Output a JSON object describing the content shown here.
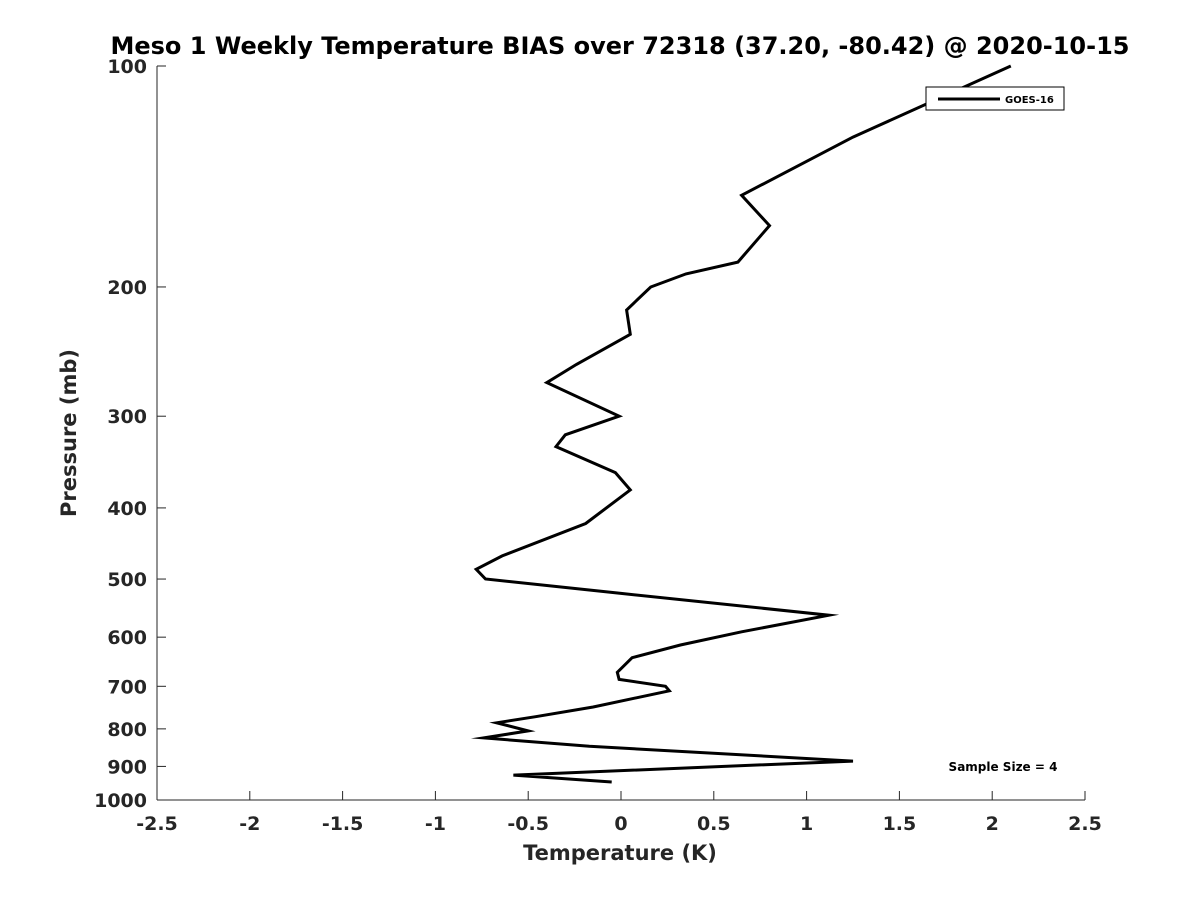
{
  "chart_data": {
    "type": "line",
    "title": "Meso 1 Weekly Temperature BIAS over 72318 (37.20, -80.42) @ 2020-10-15",
    "xlabel": "Temperature (K)",
    "ylabel": "Pressure (mb)",
    "xlim": [
      -2.5,
      2.5
    ],
    "ylim": [
      100,
      1000
    ],
    "y_scale": "log",
    "y_reversed": true,
    "grid": false,
    "x_ticks": [
      -2.5,
      -2,
      -1.5,
      -1,
      -0.5,
      0,
      0.5,
      1,
      1.5,
      2,
      2.5
    ],
    "x_tick_labels": [
      "-2.5",
      "-2",
      "-1.5",
      "-1",
      "-0.5",
      "0",
      "0.5",
      "1",
      "1.5",
      "2",
      "2.5"
    ],
    "y_ticks": [
      100,
      200,
      300,
      400,
      500,
      600,
      700,
      800,
      900,
      1000
    ],
    "y_tick_labels": [
      "100",
      "200",
      "300",
      "400",
      "500",
      "600",
      "700",
      "800",
      "900",
      "1000"
    ],
    "legend": {
      "placement": "top-right"
    },
    "series": [
      {
        "name": "GOES-16",
        "color": "#000000",
        "points": [
          [
            2.1,
            100
          ],
          [
            1.25,
            125
          ],
          [
            0.65,
            150
          ],
          [
            0.8,
            165
          ],
          [
            0.63,
            185
          ],
          [
            0.35,
            192
          ],
          [
            0.16,
            200
          ],
          [
            0.03,
            215
          ],
          [
            0.05,
            232
          ],
          [
            -0.24,
            255
          ],
          [
            -0.4,
            270
          ],
          [
            -0.01,
            300
          ],
          [
            -0.3,
            318
          ],
          [
            -0.35,
            330
          ],
          [
            -0.03,
            358
          ],
          [
            0.05,
            378
          ],
          [
            -0.19,
            420
          ],
          [
            -0.64,
            465
          ],
          [
            -0.78,
            485
          ],
          [
            -0.73,
            500
          ],
          [
            0.0,
            523
          ],
          [
            1.12,
            560
          ],
          [
            0.65,
            590
          ],
          [
            0.32,
            615
          ],
          [
            0.06,
            640
          ],
          [
            -0.02,
            670
          ],
          [
            -0.01,
            685
          ],
          [
            0.24,
            700
          ],
          [
            0.26,
            710
          ],
          [
            -0.15,
            747
          ],
          [
            -0.46,
            770
          ],
          [
            -0.67,
            785
          ],
          [
            -0.5,
            805
          ],
          [
            -0.74,
            823
          ],
          [
            -0.17,
            845
          ],
          [
            1.25,
            885
          ],
          [
            -0.58,
            925
          ],
          [
            -0.05,
            945
          ]
        ]
      }
    ],
    "annotations": [
      "Sample Size = 4"
    ]
  }
}
